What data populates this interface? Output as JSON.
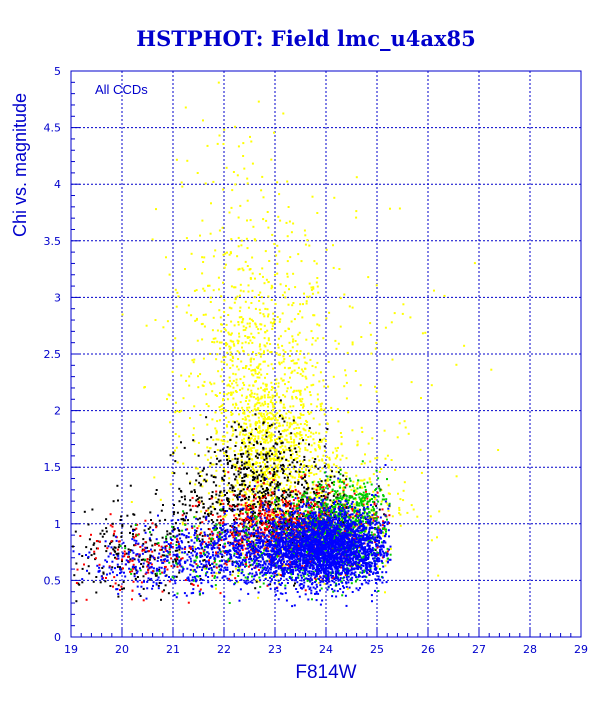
{
  "chart_data": {
    "type": "scatter",
    "title": "HSTPHOT: Field lmc_u4ax85",
    "xlabel": "F814W",
    "ylabel": "Chi vs. magnitude",
    "annotation": "All CCDs",
    "xlim": [
      19,
      29
    ],
    "ylim": [
      0,
      5
    ],
    "xticks": [
      "19",
      "20",
      "21",
      "22",
      "23",
      "24",
      "25",
      "26",
      "27",
      "28",
      "29"
    ],
    "yticks": [
      "0",
      "0.5",
      "1",
      "1.5",
      "2",
      "2.5",
      "3",
      "3.5",
      "4",
      "4.5",
      "5"
    ],
    "grid": true,
    "colors": {
      "axis": "#0000cc",
      "title": "#0000cc",
      "grid": "#0000cc"
    },
    "series": [
      {
        "color": "#ffff00",
        "clusters": [
          {
            "x_mean": 22.6,
            "x_sd": 0.75,
            "y_mean": 2.05,
            "y_sd": 0.7,
            "n": 900
          },
          {
            "x_mean": 22.9,
            "x_sd": 0.5,
            "y_mean": 1.6,
            "y_sd": 0.35,
            "n": 600
          },
          {
            "x_mean": 24.2,
            "x_sd": 0.7,
            "y_mean": 1.2,
            "y_sd": 0.3,
            "n": 350
          },
          {
            "x_mean": 23.8,
            "x_sd": 1.3,
            "y_mean": 2.4,
            "y_sd": 0.9,
            "n": 160
          },
          {
            "x_mean": 22.3,
            "x_sd": 0.7,
            "y_mean": 3.3,
            "y_sd": 0.7,
            "n": 150
          }
        ]
      },
      {
        "color": "#000000",
        "clusters": [
          {
            "x_mean": 22.8,
            "x_sd": 0.9,
            "y_mean": 1.15,
            "y_sd": 0.22,
            "n": 700
          },
          {
            "x_mean": 20.2,
            "x_sd": 0.75,
            "y_mean": 0.75,
            "y_sd": 0.18,
            "n": 220
          },
          {
            "x_mean": 22.6,
            "x_sd": 0.6,
            "y_mean": 1.6,
            "y_sd": 0.18,
            "n": 160
          }
        ]
      },
      {
        "color": "#ff0000",
        "clusters": [
          {
            "x_mean": 23.4,
            "x_sd": 0.9,
            "y_mean": 0.95,
            "y_sd": 0.18,
            "n": 900
          },
          {
            "x_mean": 20.5,
            "x_sd": 0.75,
            "y_mean": 0.7,
            "y_sd": 0.15,
            "n": 150
          }
        ]
      },
      {
        "color": "#00cc00",
        "clusters": [
          {
            "x_mean": 24.1,
            "x_sd": 0.5,
            "y_mean": 0.9,
            "y_sd": 0.2,
            "n": 750
          },
          {
            "x_mean": 22.5,
            "x_sd": 1.2,
            "y_mean": 0.75,
            "y_sd": 0.15,
            "n": 250
          },
          {
            "x_mean": 24.6,
            "x_sd": 0.3,
            "y_mean": 1.2,
            "y_sd": 0.12,
            "n": 160
          }
        ]
      },
      {
        "color": "#0000ff",
        "clusters": [
          {
            "x_mean": 24.0,
            "x_sd": 0.6,
            "y_mean": 0.8,
            "y_sd": 0.17,
            "n": 2400
          },
          {
            "x_mean": 22.7,
            "x_sd": 1.0,
            "y_mean": 0.75,
            "y_sd": 0.15,
            "n": 900
          },
          {
            "x_mean": 20.6,
            "x_sd": 0.8,
            "y_mean": 0.65,
            "y_sd": 0.12,
            "n": 180
          }
        ]
      }
    ]
  }
}
